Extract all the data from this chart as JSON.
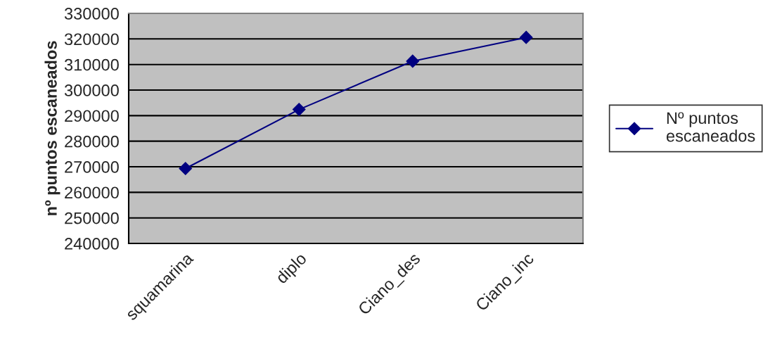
{
  "chart_data": {
    "type": "line",
    "ylabel": "nº puntos escaneados",
    "categories": [
      "squamarina",
      "diplo",
      "Ciano_des",
      "Ciano_inc"
    ],
    "series": [
      {
        "name": "Nº puntos escaneados",
        "color": "#000080",
        "values": [
          269300,
          292400,
          311300,
          320600
        ]
      }
    ],
    "ylim": [
      240000,
      330000
    ],
    "yticks": [
      240000,
      250000,
      260000,
      270000,
      280000,
      290000,
      300000,
      310000,
      320000,
      330000
    ],
    "grid": "y",
    "legend": "right",
    "marker": "diamond",
    "line_style": "solid"
  }
}
